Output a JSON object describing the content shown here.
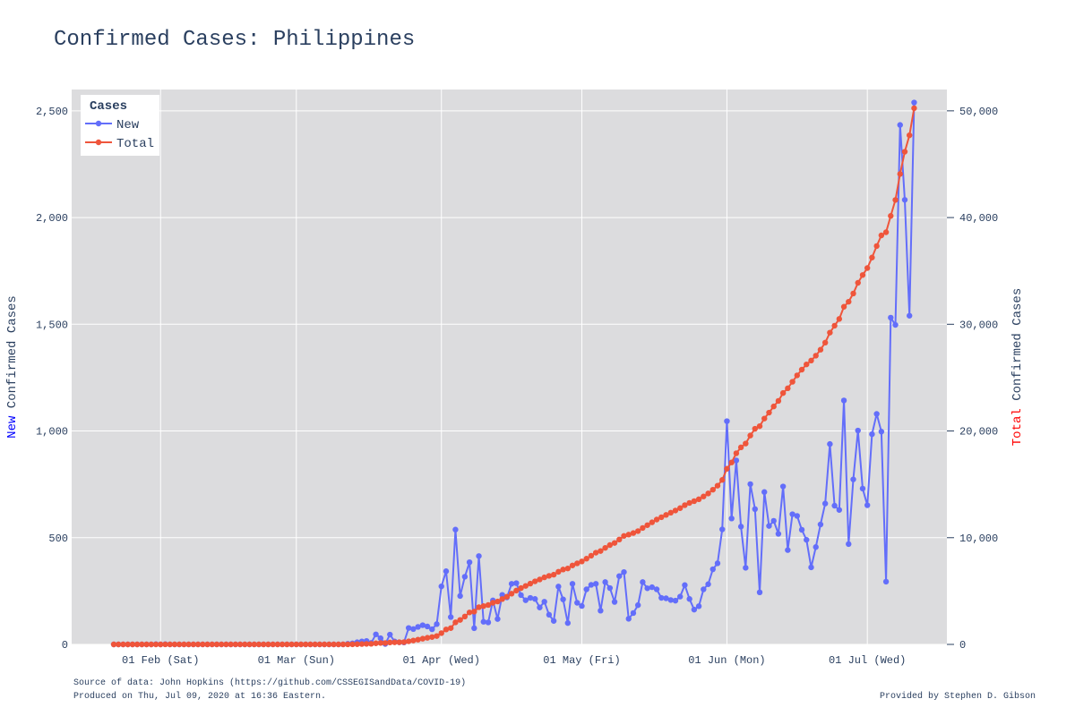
{
  "chart_data": {
    "type": "line",
    "title": "Confirmed Cases: Philippines",
    "x_tick_labels": [
      "01 Feb (Sat)",
      "01 Mar (Sun)",
      "01 Apr (Wed)",
      "01 May (Fri)",
      "01 Jun (Mon)",
      "01 Jul (Wed)"
    ],
    "x_tick_dates": [
      "2020-02-01",
      "2020-03-01",
      "2020-04-01",
      "2020-05-01",
      "2020-06-01",
      "2020-07-01"
    ],
    "x_range": [
      "2020-01-13",
      "2020-07-18"
    ],
    "x_start": "2020-01-22",
    "x_end": "2020-07-08",
    "y_left": {
      "title_prefix": "New",
      "title_rest": " Confirmed Cases",
      "title_prefix_color": "#0000ff",
      "range": [
        0,
        2600
      ],
      "ticks": [
        0,
        500,
        1000,
        1500,
        2000,
        2500
      ],
      "tick_labels": [
        "0",
        "500",
        "1,000",
        "1,500",
        "2,000",
        "2,500"
      ]
    },
    "y_right": {
      "title_prefix": "Total",
      "title_rest": " Confirmed Cases",
      "title_prefix_color": "#ff0000",
      "range": [
        0,
        52000
      ],
      "ticks": [
        0,
        10000,
        20000,
        30000,
        40000,
        50000
      ],
      "tick_labels": [
        "0",
        "10,000",
        "20,000",
        "30,000",
        "40,000",
        "50,000"
      ]
    },
    "grid": true,
    "legend": {
      "title": "Cases",
      "position": "top-left"
    },
    "series": [
      {
        "name": "New",
        "color": "#636efa",
        "axis": "left",
        "values": [
          0,
          0,
          0,
          0,
          0,
          0,
          0,
          0,
          0,
          1,
          0,
          1,
          0,
          0,
          0,
          0,
          0,
          0,
          0,
          0,
          0,
          0,
          0,
          0,
          0,
          0,
          0,
          0,
          0,
          0,
          0,
          0,
          0,
          0,
          0,
          0,
          0,
          0,
          0,
          0,
          0,
          0,
          0,
          0,
          0,
          0,
          0,
          0,
          0,
          0,
          3,
          5,
          10,
          14,
          16,
          7,
          47,
          29,
          2,
          46,
          14,
          10,
          9,
          77,
          72,
          82,
          90,
          84,
          71,
          95,
          272,
          343,
          128,
          538,
          227,
          317,
          385,
          76,
          414,
          106,
          103,
          206,
          119,
          232,
          220,
          284,
          287,
          231,
          207,
          218,
          213,
          173,
          200,
          139,
          110,
          271,
          211,
          100,
          284,
          195,
          180,
          258,
          279,
          284,
          158,
          292,
          264,
          199,
          320,
          339,
          120,
          147,
          184,
          292,
          263,
          268,
          258,
          218,
          216,
          208,
          205,
          224,
          278,
          213,
          163,
          179,
          258,
          282,
          352,
          380,
          539,
          1046,
          590,
          862,
          552,
          359,
          751,
          634,
          244,
          714,
          555,
          579,
          518,
          740,
          442,
          610,
          602,
          537,
          490,
          361,
          456,
          562,
          660,
          939,
          650,
          630,
          1143,
          470,
          773,
          1002,
          730,
          652,
          985,
          1080,
          997,
          294,
          1531,
          1497,
          2434,
          2083,
          1540,
          2539
        ]
      },
      {
        "name": "Total",
        "color": "#ef553b",
        "axis": "right",
        "values": [
          0,
          0,
          0,
          0,
          0,
          0,
          0,
          0,
          0,
          1,
          1,
          2,
          2,
          2,
          2,
          2,
          2,
          2,
          2,
          2,
          2,
          2,
          2,
          2,
          2,
          2,
          2,
          2,
          2,
          2,
          2,
          2,
          2,
          2,
          2,
          2,
          2,
          2,
          2,
          2,
          2,
          2,
          2,
          2,
          2,
          2,
          2,
          2,
          2,
          2,
          5,
          10,
          20,
          34,
          50,
          57,
          104,
          133,
          135,
          181,
          195,
          205,
          214,
          291,
          363,
          445,
          535,
          619,
          690,
          785,
          1057,
          1400,
          1528,
          2066,
          2293,
          2610,
          2995,
          3071,
          3485,
          3591,
          3694,
          3900,
          4019,
          4251,
          4471,
          4755,
          5042,
          5273,
          5480,
          5698,
          5911,
          6084,
          6284,
          6423,
          6533,
          6804,
          7015,
          7115,
          7399,
          7594,
          7774,
          8032,
          8311,
          8595,
          8753,
          9045,
          9309,
          9508,
          9828,
          10167,
          10287,
          10434,
          10618,
          10910,
          11173,
          11441,
          11699,
          11917,
          12133,
          12341,
          12546,
          12770,
          13048,
          13261,
          13424,
          13603,
          13861,
          14143,
          14495,
          14875,
          15414,
          16460,
          17050,
          17912,
          18464,
          18823,
          19574,
          20208,
          20452,
          21166,
          21721,
          22300,
          22818,
          23558,
          24000,
          24610,
          25212,
          25749,
          26239,
          26600,
          27056,
          27618,
          28278,
          29217,
          29867,
          30497,
          31640,
          32110,
          32883,
          33885,
          34615,
          35267,
          36252,
          37332,
          38329,
          38623,
          40154,
          41651,
          44085,
          46168,
          47708,
          50247
        ]
      }
    ]
  },
  "footer": {
    "source": "Source of data: John Hopkins (https://github.com/CSSEGISandData/COVID-19)",
    "produced": "Produced on Thu, Jul 09, 2020 at 16:36 Eastern.",
    "credit": "Provided by Stephen D. Gibson"
  }
}
